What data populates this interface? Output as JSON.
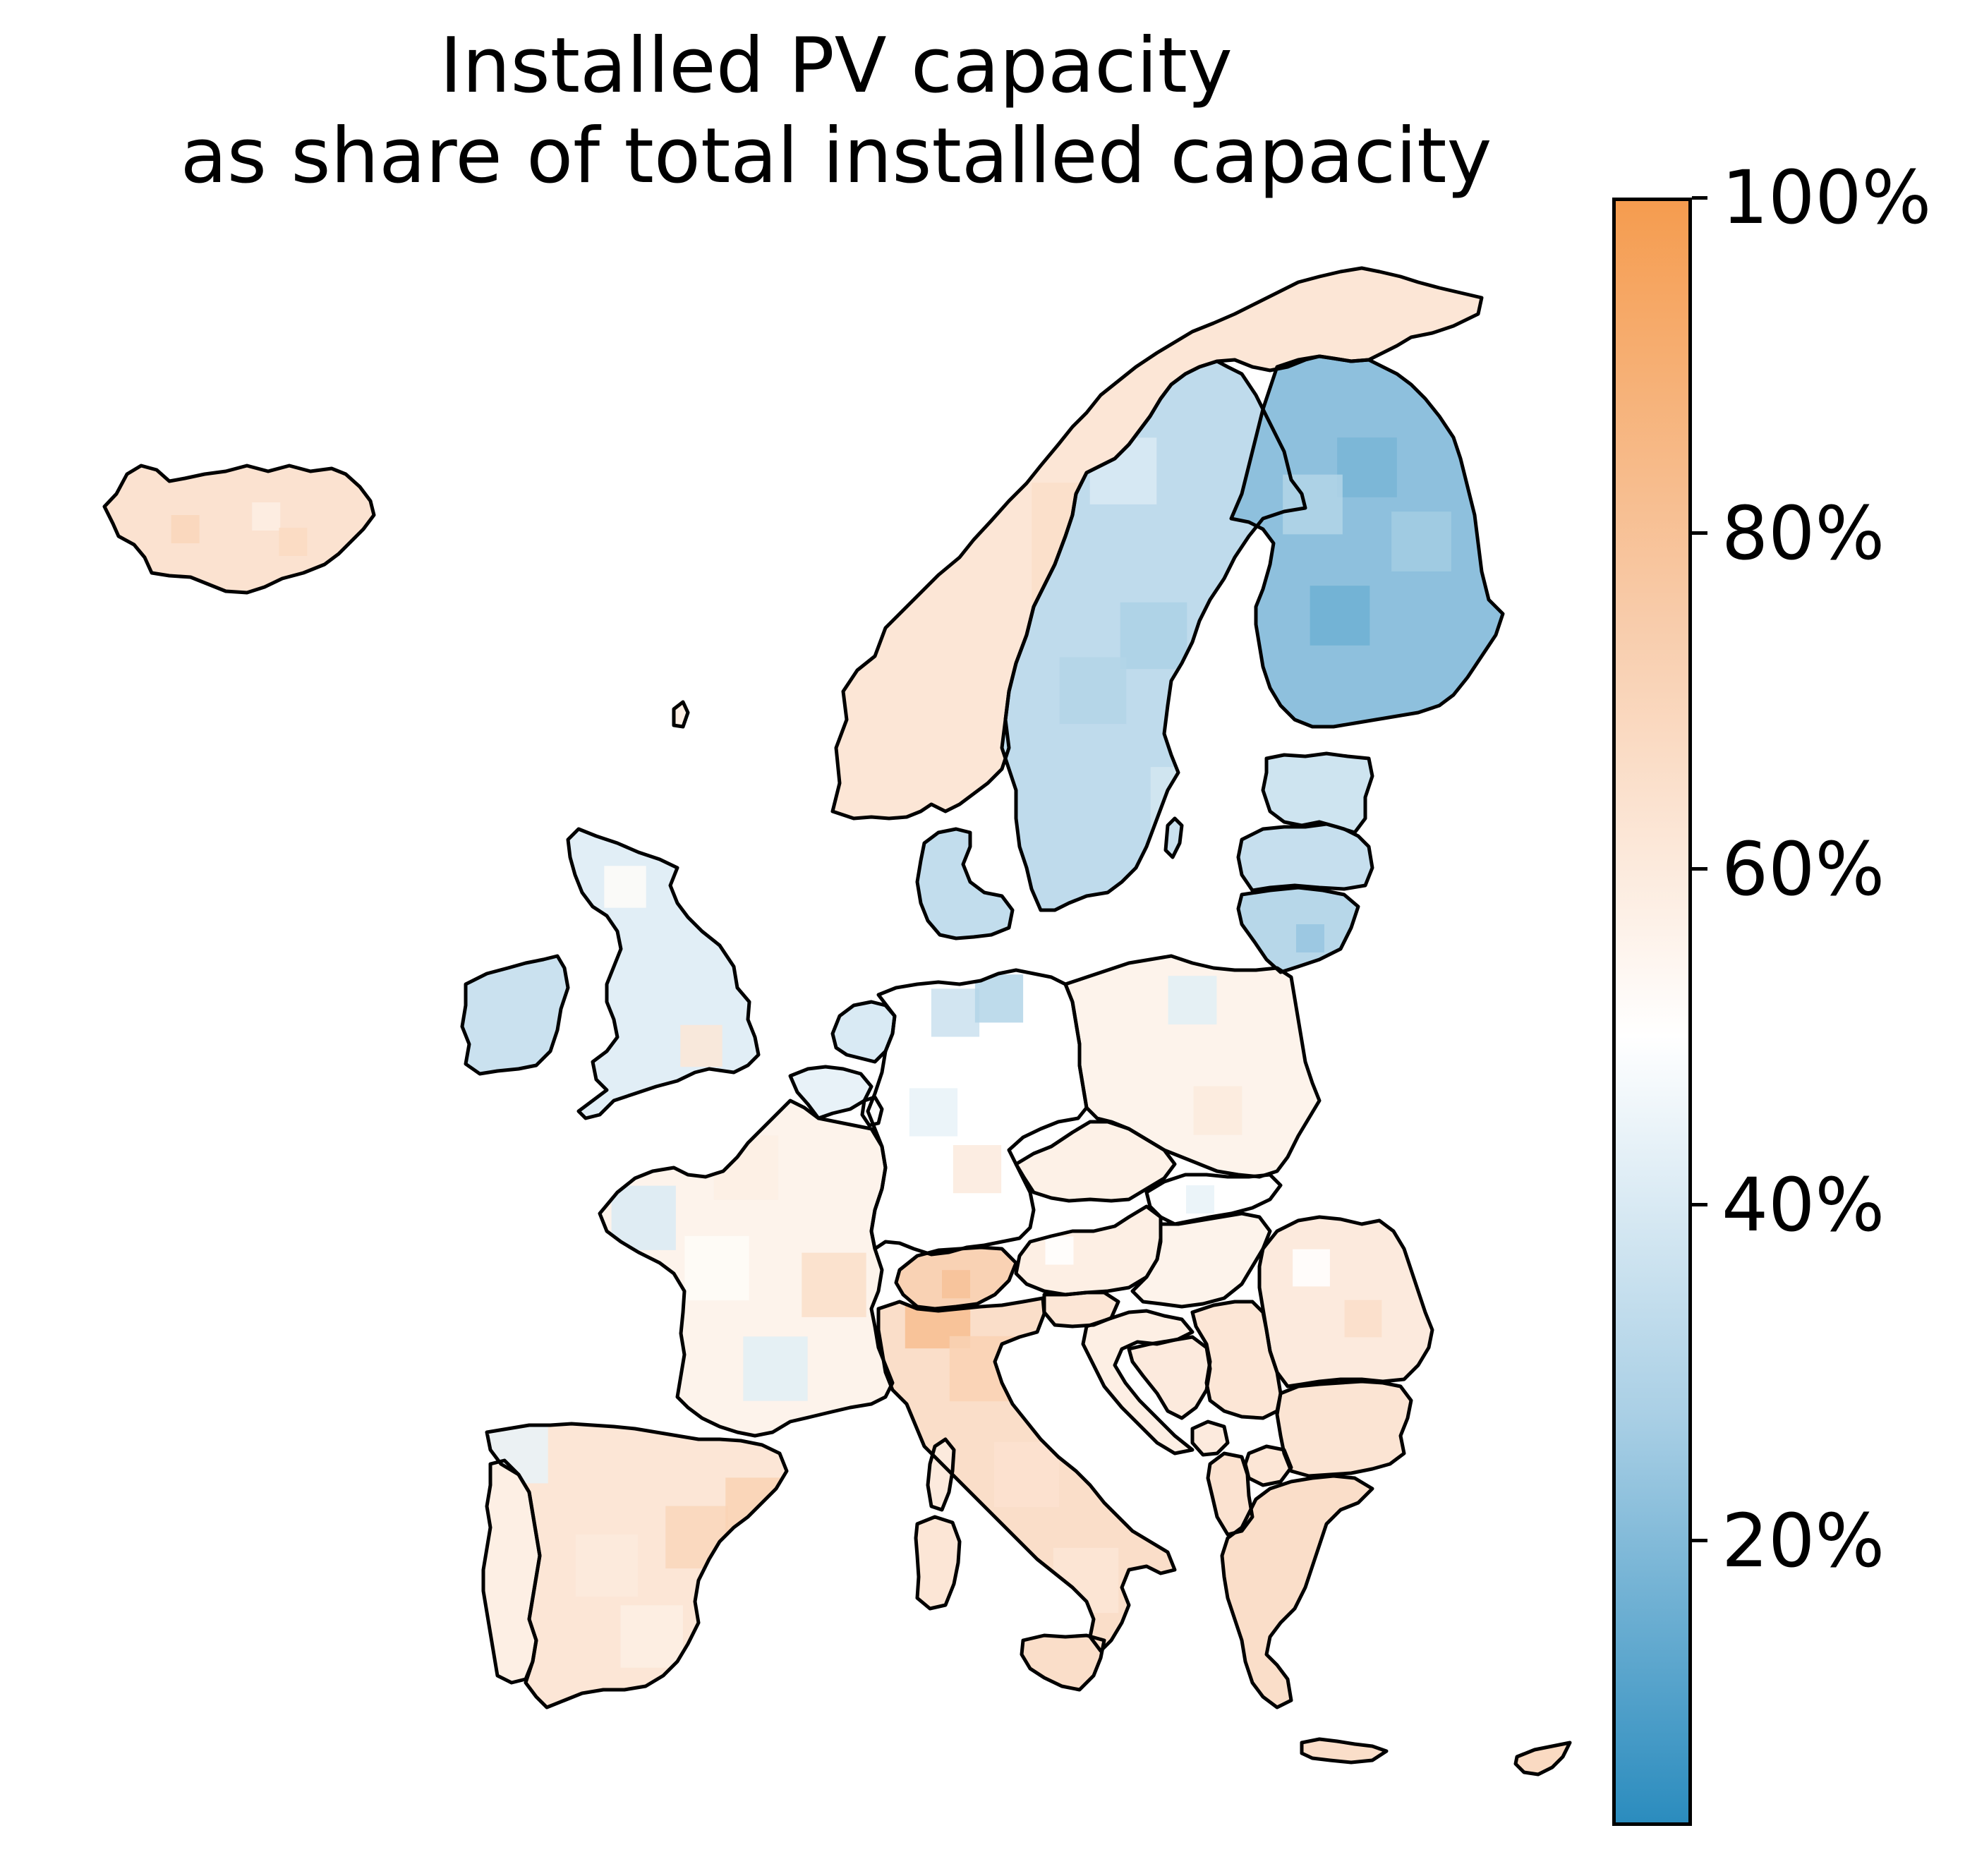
{
  "title_line1": "Installed PV capacity",
  "title_line2": "as share of total installed capacity",
  "colorbar": {
    "min": 3,
    "max": 100,
    "ticks": [
      {
        "value": 20,
        "label": "20%"
      },
      {
        "value": 40,
        "label": "40%"
      },
      {
        "value": 60,
        "label": "60%"
      },
      {
        "value": 80,
        "label": "80%"
      },
      {
        "value": 100,
        "label": "100%"
      }
    ],
    "low_color": "#2b8cbe",
    "mid_color": "#ffffff",
    "high_color": "#f59c4f",
    "mid_value": 50
  },
  "regions": [
    {
      "name": "Iceland",
      "pv_share": 64,
      "mottle_cells": [
        [
          0.3,
          0.5,
          70
        ],
        [
          0.6,
          0.4,
          58
        ],
        [
          0.7,
          0.6,
          68
        ]
      ]
    },
    {
      "name": "Norway",
      "pv_share": 62,
      "mottle_cells": [
        [
          0.5,
          0.7,
          50
        ],
        [
          0.6,
          0.8,
          45
        ],
        [
          0.4,
          0.5,
          66
        ],
        [
          0.7,
          0.55,
          40
        ]
      ]
    },
    {
      "name": "Sweden",
      "pv_share": 33,
      "mottle_cells": [
        [
          0.4,
          0.2,
          40
        ],
        [
          0.5,
          0.5,
          28
        ],
        [
          0.6,
          0.8,
          38
        ],
        [
          0.3,
          0.6,
          30
        ]
      ]
    },
    {
      "name": "Finland",
      "pv_share": 22,
      "mottle_cells": [
        [
          0.5,
          0.3,
          18
        ],
        [
          0.4,
          0.7,
          16
        ],
        [
          0.7,
          0.5,
          26
        ],
        [
          0.3,
          0.4,
          30
        ]
      ]
    },
    {
      "name": "Estonia",
      "pv_share": 37,
      "mottle_cells": []
    },
    {
      "name": "Latvia",
      "pv_share": 35,
      "mottle_cells": []
    },
    {
      "name": "Lithuania",
      "pv_share": 31,
      "mottle_cells": [
        [
          0.6,
          0.6,
          24
        ]
      ]
    },
    {
      "name": "Denmark",
      "pv_share": 34,
      "mottle_cells": []
    },
    {
      "name": "Ireland",
      "pv_share": 36,
      "mottle_cells": []
    },
    {
      "name": "United Kingdom",
      "pv_share": 42,
      "mottle_cells": [
        [
          0.7,
          0.75,
          62
        ],
        [
          0.3,
          0.2,
          52
        ]
      ]
    },
    {
      "name": "Netherlands",
      "pv_share": 40,
      "mottle_cells": []
    },
    {
      "name": "Belgium",
      "pv_share": 44,
      "mottle_cells": []
    },
    {
      "name": "Germany",
      "pv_share": 50,
      "mottle_cells": [
        [
          0.4,
          0.15,
          36
        ],
        [
          0.6,
          0.1,
          30
        ],
        [
          0.5,
          0.7,
          60
        ],
        [
          0.3,
          0.5,
          44
        ]
      ]
    },
    {
      "name": "Poland",
      "pv_share": 56,
      "mottle_cells": [
        [
          0.5,
          0.2,
          42
        ],
        [
          0.6,
          0.7,
          60
        ]
      ]
    },
    {
      "name": "Czechia",
      "pv_share": 57,
      "mottle_cells": []
    },
    {
      "name": "Slovakia",
      "pv_share": 50,
      "mottle_cells": [
        [
          0.4,
          0.5,
          44
        ]
      ]
    },
    {
      "name": "Austria",
      "pv_share": 58,
      "mottle_cells": [
        [
          0.3,
          0.5,
          50
        ]
      ]
    },
    {
      "name": "Switzerland",
      "pv_share": 72,
      "mottle_cells": [
        [
          0.5,
          0.6,
          80
        ]
      ]
    },
    {
      "name": "Hungary",
      "pv_share": 56,
      "mottle_cells": []
    },
    {
      "name": "Slovenia",
      "pv_share": 62,
      "mottle_cells": []
    },
    {
      "name": "Croatia",
      "pv_share": 58,
      "mottle_cells": []
    },
    {
      "name": "Bosnia and Herzegovina",
      "pv_share": 60,
      "mottle_cells": []
    },
    {
      "name": "Serbia",
      "pv_share": 62,
      "mottle_cells": []
    },
    {
      "name": "Romania",
      "pv_share": 60,
      "mottle_cells": [
        [
          0.3,
          0.3,
          50
        ],
        [
          0.6,
          0.6,
          66
        ]
      ]
    },
    {
      "name": "Bulgaria",
      "pv_share": 63,
      "mottle_cells": []
    },
    {
      "name": "Greece",
      "pv_share": 66,
      "mottle_cells": []
    },
    {
      "name": "North Macedonia",
      "pv_share": 62,
      "mottle_cells": []
    },
    {
      "name": "Albania",
      "pv_share": 64,
      "mottle_cells": []
    },
    {
      "name": "Montenegro",
      "pv_share": 60,
      "mottle_cells": []
    },
    {
      "name": "France",
      "pv_share": 56,
      "mottle_cells": [
        [
          0.15,
          0.35,
          40
        ],
        [
          0.4,
          0.5,
          52
        ],
        [
          0.6,
          0.8,
          42
        ],
        [
          0.8,
          0.55,
          66
        ],
        [
          0.5,
          0.2,
          58
        ]
      ]
    },
    {
      "name": "Luxembourg",
      "pv_share": 50,
      "mottle_cells": []
    },
    {
      "name": "Spain",
      "pv_share": 62,
      "mottle_cells": [
        [
          0.1,
          0.1,
          44
        ],
        [
          0.4,
          0.5,
          60
        ],
        [
          0.7,
          0.4,
          70
        ],
        [
          0.55,
          0.75,
          58
        ],
        [
          0.9,
          0.3,
          72
        ]
      ]
    },
    {
      "name": "Portugal",
      "pv_share": 58,
      "mottle_cells": []
    },
    {
      "name": "Italy",
      "pv_share": 66,
      "mottle_cells": [
        [
          0.2,
          0.05,
          82
        ],
        [
          0.35,
          0.2,
          72
        ],
        [
          0.5,
          0.5,
          64
        ],
        [
          0.7,
          0.8,
          62
        ]
      ]
    },
    {
      "name": "Corsica",
      "pv_share": 60,
      "mottle_cells": []
    },
    {
      "name": "Sardinia",
      "pv_share": 62,
      "mottle_cells": []
    },
    {
      "name": "Sicily",
      "pv_share": 66,
      "mottle_cells": []
    },
    {
      "name": "Crete",
      "pv_share": 66,
      "mottle_cells": []
    },
    {
      "name": "Cyprus",
      "pv_share": 68,
      "mottle_cells": []
    },
    {
      "name": "Gotland",
      "pv_share": 36,
      "mottle_cells": []
    },
    {
      "name": "Faroe",
      "pv_share": 58,
      "mottle_cells": []
    }
  ]
}
